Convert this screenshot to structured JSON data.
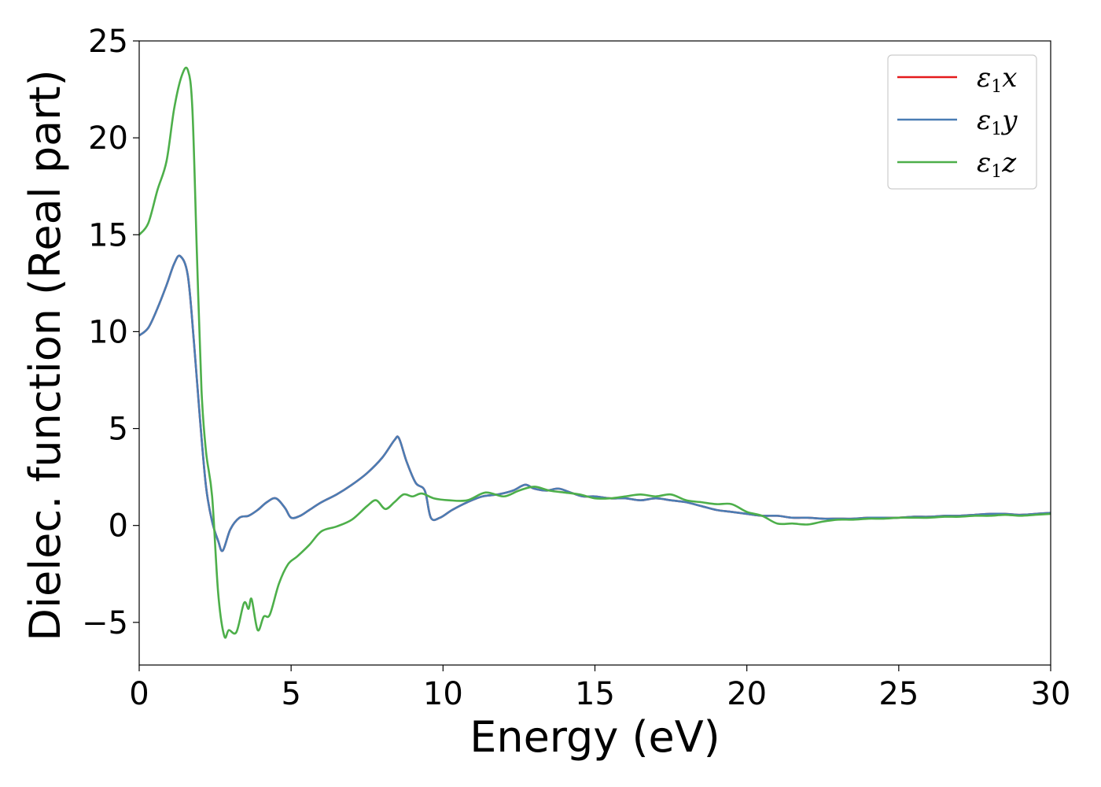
{
  "chart_data": {
    "type": "line",
    "title": "",
    "xlabel": "Energy (eV)",
    "ylabel": "Dielec. function (Real part)",
    "xlim": [
      0,
      30
    ],
    "ylim": [
      -7.2,
      25
    ],
    "xticks": [
      0,
      5,
      10,
      15,
      20,
      25,
      30
    ],
    "xtick_labels": [
      "0",
      "5",
      "10",
      "15",
      "20",
      "25",
      "30"
    ],
    "yticks": [
      -5,
      0,
      5,
      10,
      15,
      20,
      25
    ],
    "ytick_labels": [
      "−5",
      "0",
      "5",
      "10",
      "15",
      "20",
      "25"
    ],
    "grid": false,
    "legend_position": "top-right",
    "series": [
      {
        "name": "ε₁x",
        "legend_symbol": "ε",
        "legend_sub": "1",
        "legend_var": "x",
        "color": "#e41a1c",
        "x": [
          0,
          0.3,
          0.6,
          0.9,
          1.15,
          1.35,
          1.6,
          1.8,
          2.0,
          2.2,
          2.4,
          2.6,
          2.75,
          3.0,
          3.3,
          3.6,
          3.9,
          4.2,
          4.5,
          4.8,
          5.0,
          5.3,
          5.6,
          6.0,
          6.5,
          7.0,
          7.5,
          8.0,
          8.4,
          8.55,
          8.8,
          9.1,
          9.4,
          9.6,
          9.9,
          10.3,
          10.8,
          11.3,
          11.8,
          12.3,
          12.7,
          13.0,
          13.4,
          13.8,
          14.2,
          14.6,
          15.0,
          15.5,
          16.0,
          16.5,
          17.0,
          17.5,
          18.0,
          18.5,
          19.0,
          19.5,
          20.0,
          20.5,
          21.0,
          21.5,
          22.0,
          22.5,
          23.0,
          23.5,
          24.0,
          24.5,
          25.0,
          25.5,
          26.0,
          26.5,
          27.0,
          27.5,
          28.0,
          28.5,
          29.0,
          29.5,
          30.0
        ],
        "y": [
          9.8,
          10.2,
          11.2,
          12.4,
          13.5,
          13.9,
          12.9,
          9.5,
          5.5,
          2.0,
          0.2,
          -0.8,
          -1.3,
          -0.2,
          0.4,
          0.5,
          0.8,
          1.2,
          1.4,
          0.9,
          0.4,
          0.5,
          0.8,
          1.2,
          1.6,
          2.1,
          2.7,
          3.5,
          4.4,
          4.5,
          3.3,
          2.2,
          1.8,
          0.4,
          0.4,
          0.8,
          1.2,
          1.5,
          1.6,
          1.8,
          2.1,
          1.9,
          1.8,
          1.9,
          1.7,
          1.5,
          1.5,
          1.4,
          1.4,
          1.3,
          1.4,
          1.3,
          1.2,
          1.0,
          0.8,
          0.7,
          0.6,
          0.5,
          0.5,
          0.4,
          0.4,
          0.35,
          0.35,
          0.35,
          0.4,
          0.4,
          0.4,
          0.45,
          0.45,
          0.5,
          0.5,
          0.55,
          0.6,
          0.6,
          0.55,
          0.6,
          0.65
        ]
      },
      {
        "name": "ε₁y",
        "legend_symbol": "ε",
        "legend_sub": "1",
        "legend_var": "y",
        "color": "#4a7db4",
        "x": [
          0,
          0.3,
          0.6,
          0.9,
          1.15,
          1.35,
          1.6,
          1.8,
          2.0,
          2.2,
          2.4,
          2.6,
          2.75,
          3.0,
          3.3,
          3.6,
          3.9,
          4.2,
          4.5,
          4.8,
          5.0,
          5.3,
          5.6,
          6.0,
          6.5,
          7.0,
          7.5,
          8.0,
          8.4,
          8.55,
          8.8,
          9.1,
          9.4,
          9.6,
          9.9,
          10.3,
          10.8,
          11.3,
          11.8,
          12.3,
          12.7,
          13.0,
          13.4,
          13.8,
          14.2,
          14.6,
          15.0,
          15.5,
          16.0,
          16.5,
          17.0,
          17.5,
          18.0,
          18.5,
          19.0,
          19.5,
          20.0,
          20.5,
          21.0,
          21.5,
          22.0,
          22.5,
          23.0,
          23.5,
          24.0,
          24.5,
          25.0,
          25.5,
          26.0,
          26.5,
          27.0,
          27.5,
          28.0,
          28.5,
          29.0,
          29.5,
          30.0
        ],
        "y": [
          9.8,
          10.2,
          11.2,
          12.4,
          13.5,
          13.9,
          12.9,
          9.5,
          5.5,
          2.0,
          0.2,
          -0.8,
          -1.3,
          -0.2,
          0.4,
          0.5,
          0.8,
          1.2,
          1.4,
          0.9,
          0.4,
          0.5,
          0.8,
          1.2,
          1.6,
          2.1,
          2.7,
          3.5,
          4.4,
          4.5,
          3.3,
          2.2,
          1.8,
          0.4,
          0.4,
          0.8,
          1.2,
          1.5,
          1.6,
          1.8,
          2.1,
          1.9,
          1.8,
          1.9,
          1.7,
          1.5,
          1.5,
          1.4,
          1.4,
          1.3,
          1.4,
          1.3,
          1.2,
          1.0,
          0.8,
          0.7,
          0.6,
          0.5,
          0.5,
          0.4,
          0.4,
          0.35,
          0.35,
          0.35,
          0.4,
          0.4,
          0.4,
          0.45,
          0.45,
          0.5,
          0.5,
          0.55,
          0.6,
          0.6,
          0.55,
          0.6,
          0.65
        ]
      },
      {
        "name": "ε₁z",
        "legend_symbol": "ε",
        "legend_sub": "1",
        "legend_var": "z",
        "color": "#4daf4a",
        "x": [
          0,
          0.3,
          0.6,
          0.9,
          1.15,
          1.4,
          1.6,
          1.75,
          1.9,
          2.05,
          2.2,
          2.4,
          2.6,
          2.8,
          2.95,
          3.2,
          3.45,
          3.6,
          3.7,
          3.9,
          4.1,
          4.3,
          4.6,
          4.9,
          5.2,
          5.6,
          6.0,
          6.5,
          7.0,
          7.5,
          7.8,
          8.1,
          8.4,
          8.7,
          9.0,
          9.3,
          9.7,
          10.2,
          10.8,
          11.4,
          12.0,
          12.5,
          13.0,
          13.5,
          14.0,
          14.5,
          15.0,
          15.5,
          16.0,
          16.5,
          17.0,
          17.5,
          18.0,
          18.5,
          19.0,
          19.5,
          20.0,
          20.5,
          21.0,
          21.5,
          22.0,
          22.5,
          23.0,
          23.5,
          24.0,
          24.5,
          25.0,
          25.5,
          26.0,
          26.5,
          27.0,
          27.5,
          28.0,
          28.5,
          29.0,
          29.5,
          30.0
        ],
        "y": [
          15.0,
          15.6,
          17.3,
          18.8,
          21.5,
          23.2,
          23.5,
          21.5,
          14.0,
          7.0,
          3.8,
          1.5,
          -3.5,
          -5.7,
          -5.4,
          -5.5,
          -4.0,
          -4.3,
          -3.8,
          -5.4,
          -4.7,
          -4.6,
          -3.0,
          -2.0,
          -1.6,
          -1.0,
          -0.3,
          -0.05,
          0.3,
          1.0,
          1.3,
          0.85,
          1.2,
          1.6,
          1.5,
          1.65,
          1.4,
          1.3,
          1.3,
          1.7,
          1.5,
          1.8,
          2.0,
          1.8,
          1.7,
          1.6,
          1.4,
          1.4,
          1.5,
          1.6,
          1.5,
          1.6,
          1.3,
          1.2,
          1.1,
          1.1,
          0.7,
          0.5,
          0.1,
          0.1,
          0.05,
          0.2,
          0.3,
          0.3,
          0.35,
          0.35,
          0.4,
          0.4,
          0.4,
          0.45,
          0.45,
          0.5,
          0.5,
          0.55,
          0.5,
          0.55,
          0.6
        ]
      }
    ]
  }
}
